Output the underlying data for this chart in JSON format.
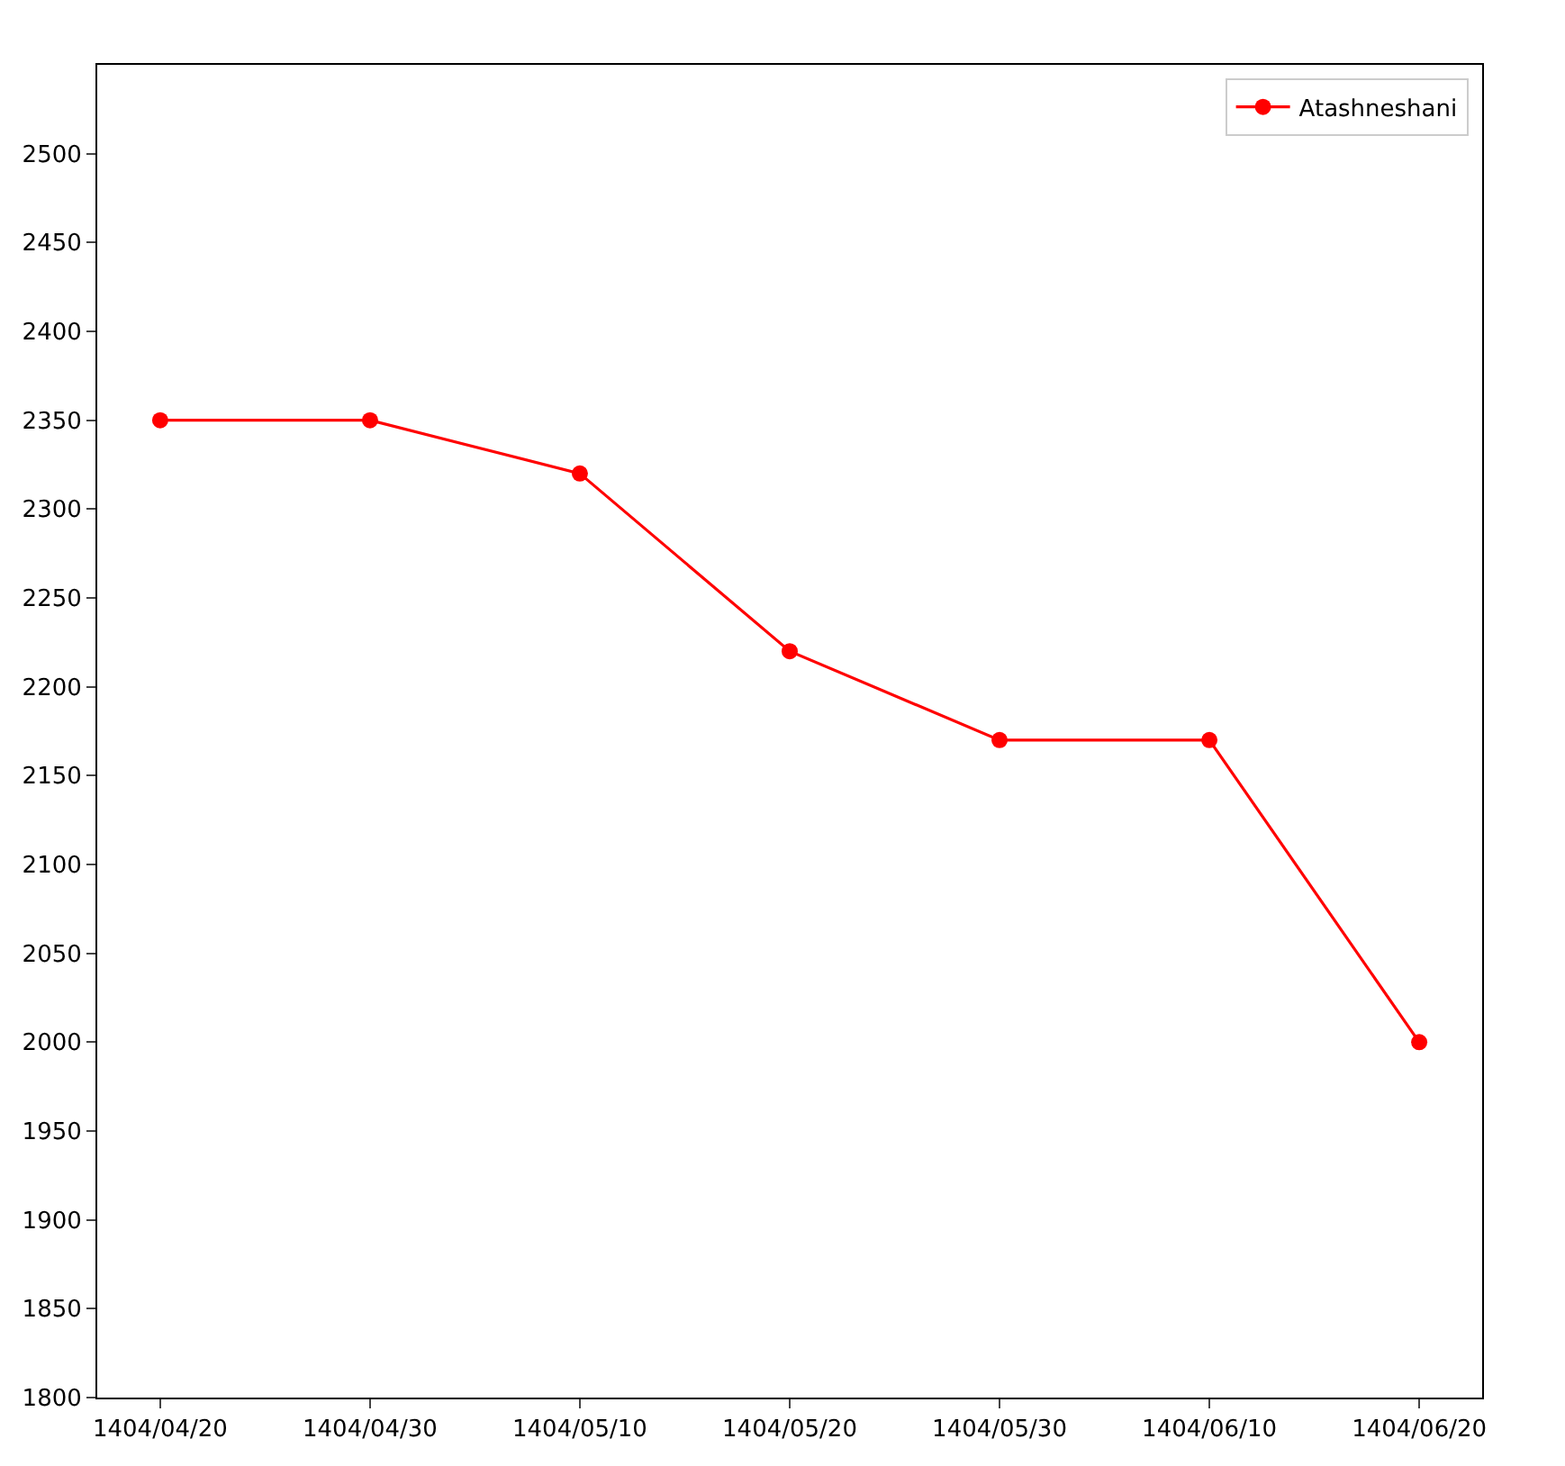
{
  "chart_data": {
    "type": "line",
    "categories": [
      "1404/04/20",
      "1404/04/30",
      "1404/05/10",
      "1404/05/20",
      "1404/05/30",
      "1404/06/10",
      "1404/06/20"
    ],
    "series": [
      {
        "name": "Atashneshani",
        "color": "#ff0000",
        "values": [
          2350,
          2350,
          2320,
          2220,
          2170,
          2170,
          2000
        ]
      }
    ],
    "ylim": [
      1800,
      2550
    ],
    "yticks": [
      1800,
      1850,
      1900,
      1950,
      2000,
      2050,
      2100,
      2150,
      2200,
      2250,
      2300,
      2350,
      2400,
      2450,
      2500
    ],
    "legend": "top right",
    "marker": "circle",
    "line_style": "solid"
  }
}
